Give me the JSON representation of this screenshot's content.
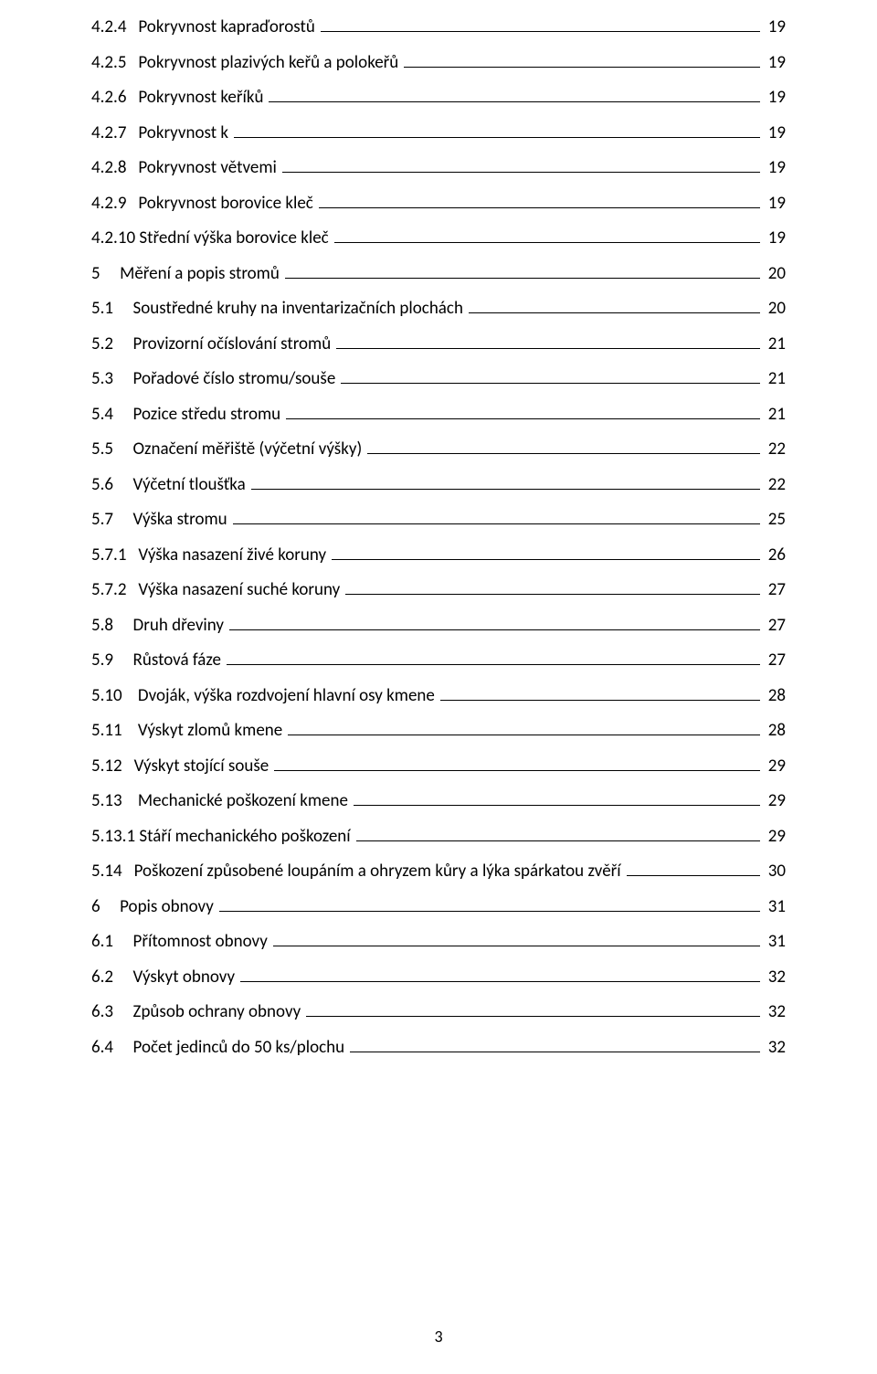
{
  "page_number": "3",
  "toc": [
    {
      "num": "4.2.4",
      "title": "Pokryvnost kapraďorostů",
      "page": "19",
      "indent": 0,
      "num_pad": "4.2.4   "
    },
    {
      "num": "4.2.5",
      "title": "Pokryvnost plazivých keřů a polokeřů",
      "page": "19",
      "indent": 0,
      "num_pad": "4.2.5   "
    },
    {
      "num": "4.2.6",
      "title": "Pokryvnost keříků",
      "page": "19",
      "indent": 0,
      "num_pad": "4.2.6   "
    },
    {
      "num": "4.2.7",
      "title": "Pokryvnost k",
      "page": "19",
      "indent": 0,
      "num_pad": "4.2.7   "
    },
    {
      "num": "4.2.8",
      "title": "Pokryvnost větvemi",
      "page": "19",
      "indent": 0,
      "num_pad": "4.2.8   "
    },
    {
      "num": "4.2.9",
      "title": "Pokryvnost borovice kleč",
      "page": "19",
      "indent": 0,
      "num_pad": "4.2.9   "
    },
    {
      "num": "4.2.10",
      "title": "Střední výška borovice kleč",
      "page": "19",
      "indent": 0,
      "num_pad": "4.2.10 "
    },
    {
      "num": "5",
      "title": "Měření a popis stromů",
      "page": "20",
      "indent": 0,
      "num_pad": "5     "
    },
    {
      "num": "5.1",
      "title": "Soustředné kruhy na inventarizačních plochách",
      "page": "20",
      "indent": 0,
      "num_pad": "5.1     "
    },
    {
      "num": "5.2",
      "title": "Provizorní očíslování stromů",
      "page": "21",
      "indent": 0,
      "num_pad": "5.2     "
    },
    {
      "num": "5.3",
      "title": "Pořadové číslo stromu/souše",
      "page": "21",
      "indent": 0,
      "num_pad": "5.3     "
    },
    {
      "num": "5.4",
      "title": "Pozice středu stromu",
      "page": "21",
      "indent": 0,
      "num_pad": "5.4     "
    },
    {
      "num": "5.5",
      "title": "Označení měřiště (výčetní výšky)",
      "page": "22",
      "indent": 0,
      "num_pad": "5.5     "
    },
    {
      "num": "5.6",
      "title": "Výčetní tloušťka",
      "page": "22",
      "indent": 0,
      "num_pad": "5.6     "
    },
    {
      "num": "5.7",
      "title": "Výška stromu",
      "page": "25",
      "indent": 0,
      "num_pad": "5.7     "
    },
    {
      "num": "5.7.1",
      "title": "Výška nasazení živé koruny",
      "page": "26",
      "indent": 0,
      "num_pad": "5.7.1   "
    },
    {
      "num": "5.7.2",
      "title": "Výška nasazení suché koruny",
      "page": "27",
      "indent": 0,
      "num_pad": "5.7.2   "
    },
    {
      "num": "5.8",
      "title": "Druh dřeviny",
      "page": "27",
      "indent": 0,
      "num_pad": "5.8     "
    },
    {
      "num": "5.9",
      "title": "Růstová fáze",
      "page": "27",
      "indent": 0,
      "num_pad": "5.9     "
    },
    {
      "num": "5.10",
      "title": "Dvoják, výška rozdvojení hlavní osy kmene",
      "page": "28",
      "indent": 0,
      "num_pad": "5.10    "
    },
    {
      "num": "5.11",
      "title": "Výskyt zlomů kmene",
      "page": "28",
      "indent": 0,
      "num_pad": "5.11    "
    },
    {
      "num": "5.12",
      "title": "Výskyt stojící souše",
      "page": "29",
      "indent": 0,
      "num_pad": "5.12   "
    },
    {
      "num": "5.13",
      "title": "Mechanické poškození kmene",
      "page": "29",
      "indent": 0,
      "num_pad": "5.13    "
    },
    {
      "num": "5.13.1",
      "title": "Stáří mechanického poškození",
      "page": "29",
      "indent": 0,
      "num_pad": "5.13.1 "
    },
    {
      "num": "5.14",
      "title": "Poškození způsobené loupáním a ohryzem kůry a lýka spárkatou zvěří",
      "page": "30",
      "indent": 0,
      "num_pad": "5.14   "
    },
    {
      "num": "6",
      "title": "Popis obnovy",
      "page": "31",
      "indent": 0,
      "num_pad": "6     "
    },
    {
      "num": "6.1",
      "title": "Přítomnost obnovy",
      "page": "31",
      "indent": 0,
      "num_pad": "6.1     "
    },
    {
      "num": "6.2",
      "title": "Výskyt obnovy",
      "page": "32",
      "indent": 0,
      "num_pad": "6.2     "
    },
    {
      "num": "6.3",
      "title": "Způsob ochrany obnovy",
      "page": "32",
      "indent": 0,
      "num_pad": "6.3     "
    },
    {
      "num": "6.4",
      "title": "Počet jedinců do 50 ks/plochu",
      "page": "32",
      "indent": 0,
      "num_pad": "6.4     "
    }
  ]
}
